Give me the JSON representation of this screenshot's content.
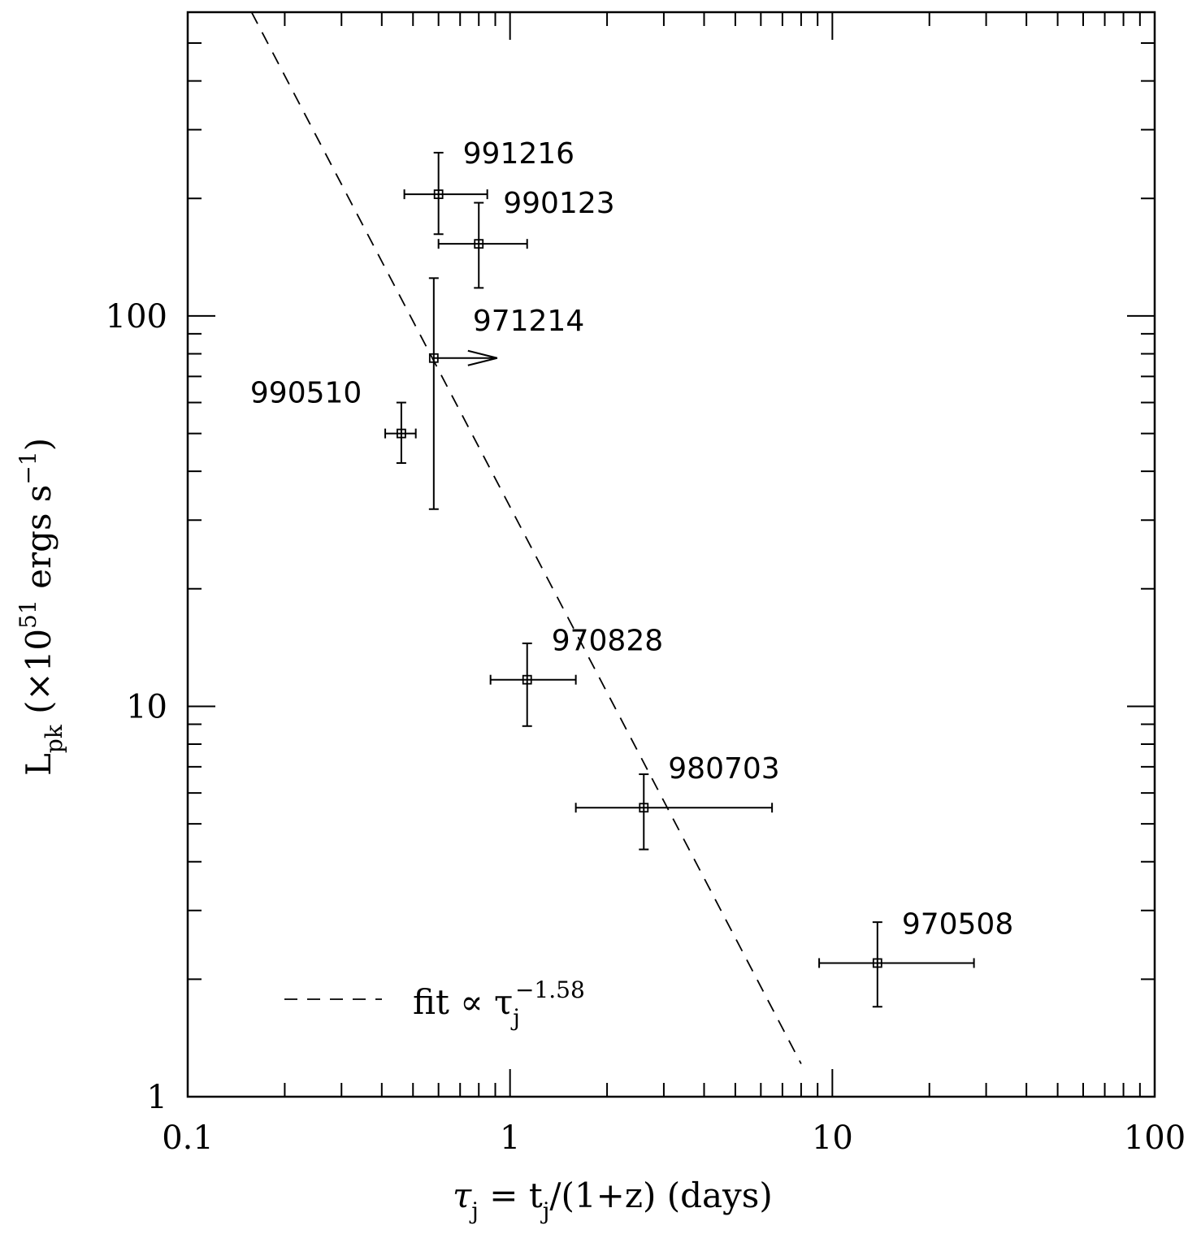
{
  "chart_data": {
    "type": "scatter",
    "x_scale": "log",
    "y_scale": "log",
    "xlim": [
      0.1,
      100
    ],
    "ylim": [
      1,
      600
    ],
    "x_ticks": [
      {
        "v": 0.1,
        "label": "0.1"
      },
      {
        "v": 1,
        "label": "1"
      },
      {
        "v": 10,
        "label": "10"
      },
      {
        "v": 100,
        "label": "100"
      }
    ],
    "y_ticks": [
      {
        "v": 1,
        "label": "1"
      },
      {
        "v": 10,
        "label": "10"
      },
      {
        "v": 100,
        "label": "100"
      }
    ],
    "xlabel": {
      "main": "τ",
      "sub": "j",
      "rest": " = t",
      "sub2": "j",
      "tail": "/(1+z) (days)"
    },
    "ylabel": {
      "main": "L",
      "sub": "pk",
      "rest": " (×10",
      "sup": "51",
      "tail": " ergs s",
      "sup2": "−1",
      "close": ")"
    },
    "points": [
      {
        "label": "991216",
        "x": 0.6,
        "y": 205,
        "xerr": [
          0.47,
          0.85
        ],
        "yerr": [
          162,
          262
        ],
        "upper_limit_x": false
      },
      {
        "label": "990123",
        "x": 0.8,
        "y": 153,
        "xerr": [
          0.6,
          1.13
        ],
        "yerr": [
          118,
          195
        ],
        "upper_limit_x": false
      },
      {
        "label": "971214",
        "x": 0.58,
        "y": 78,
        "xerr": null,
        "yerr": [
          32,
          125
        ],
        "upper_limit_x": true
      },
      {
        "label": "990510",
        "x": 0.46,
        "y": 50,
        "xerr": [
          0.41,
          0.51
        ],
        "yerr": [
          42,
          60
        ],
        "upper_limit_x": false
      },
      {
        "label": "970828",
        "x": 1.13,
        "y": 11.7,
        "xerr": [
          0.87,
          1.6
        ],
        "yerr": [
          8.9,
          14.5
        ],
        "upper_limit_x": false
      },
      {
        "label": "980703",
        "x": 2.6,
        "y": 5.5,
        "xerr": [
          1.6,
          6.5
        ],
        "yerr": [
          4.3,
          6.7
        ],
        "upper_limit_x": false
      },
      {
        "label": "970508",
        "x": 13.8,
        "y": 2.2,
        "xerr": [
          9.1,
          27.5
        ],
        "yerr": [
          1.7,
          2.8
        ],
        "upper_limit_x": false
      }
    ],
    "fit": {
      "slope": -1.58,
      "x": [
        0.15,
        8.0
      ],
      "legend": {
        "text": "fit ∝ τ",
        "sub": "j",
        "sup": "−1.58"
      }
    }
  }
}
